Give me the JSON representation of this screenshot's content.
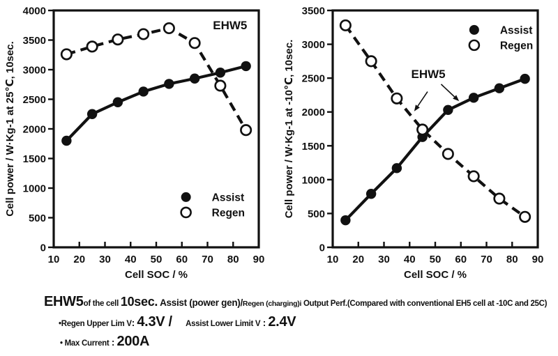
{
  "ink_color": "#111111",
  "background": "#ffffff",
  "chart_data": [
    {
      "id": "left",
      "type": "line",
      "annotation": {
        "text": "EHW5",
        "x": 78.8,
        "y": 3680,
        "arrows": []
      },
      "xlabel": "Cell SOC / %",
      "ylabel": "Cell power / W·Kg-1 at 25℃, 10sec.",
      "xlim": [
        10,
        90
      ],
      "ylim": [
        0,
        4000
      ],
      "xticks": [
        10,
        20,
        30,
        40,
        50,
        60,
        70,
        80,
        90
      ],
      "yticks": [
        0,
        500,
        1000,
        1500,
        2000,
        2500,
        3000,
        3500,
        4000
      ],
      "x": [
        15,
        25,
        35,
        45,
        55,
        65,
        75,
        85
      ],
      "series": [
        {
          "name": "Assist",
          "marker": "filled-circle",
          "line": "solid",
          "values": [
            1800,
            2250,
            2450,
            2630,
            2760,
            2850,
            2950,
            3060
          ]
        },
        {
          "name": "Regen",
          "marker": "open-circle",
          "line": "dashed",
          "values": [
            3260,
            3390,
            3510,
            3600,
            3700,
            3450,
            2730,
            1980
          ]
        }
      ],
      "legend_position": "inside-bottom-right",
      "grid": false
    },
    {
      "id": "right",
      "type": "line",
      "annotation": {
        "text": "EHW5",
        "x": 47.3,
        "y": 2500,
        "arrows": [
          {
            "x1": 47.0,
            "y1": 2300,
            "x2": 41.8,
            "y2": 2010
          },
          {
            "x1": 52.3,
            "y1": 2410,
            "x2": 59.3,
            "y2": 2160
          }
        ]
      },
      "xlabel": "Cell SOC / %",
      "ylabel": "Cell power / W·Kg-1 at -10℃, 10sec.",
      "xlim": [
        10,
        90
      ],
      "ylim": [
        0,
        3500
      ],
      "xticks": [
        10,
        20,
        30,
        40,
        50,
        60,
        70,
        80,
        90
      ],
      "yticks": [
        0,
        500,
        1000,
        1500,
        2000,
        2500,
        3000,
        3500
      ],
      "x": [
        15,
        25,
        35,
        45,
        55,
        65,
        75,
        85
      ],
      "series": [
        {
          "name": "Assist",
          "marker": "filled-circle",
          "line": "solid",
          "values": [
            400,
            790,
            1170,
            1630,
            2030,
            2210,
            2350,
            2490
          ]
        },
        {
          "name": "Regen",
          "marker": "open-circle",
          "line": "dashed",
          "values": [
            3280,
            2750,
            2200,
            1740,
            1380,
            1050,
            720,
            450
          ]
        }
      ],
      "legend_position": "inside-top-right",
      "grid": false
    }
  ],
  "caption": {
    "lines": [
      [
        {
          "text": "EHW5",
          "size": "xl"
        },
        {
          "text": "of the cell ",
          "size": "sm"
        },
        {
          "text": "10sec.",
          "size": "lg"
        },
        {
          "text": " Assist (power gen)",
          "size": "md"
        },
        {
          "text": "/",
          "size": "md"
        },
        {
          "text": "Regen (charging)i",
          "size": "xs"
        },
        {
          "text": " Output Perf.(Compared with conventional EH5 cell at -10C and 25C)",
          "size": "sm"
        }
      ],
      [
        {
          "text": "•Regen Upper Lim V",
          "size": "sm"
        },
        {
          "text": ": ",
          "size": "md"
        },
        {
          "text": "4.3V / ",
          "size": "xl"
        },
        {
          "text": "     Assist Lower Limit V",
          "size": "sm"
        },
        {
          "text": " : ",
          "size": "md"
        },
        {
          "text": "2.4V",
          "size": "xl"
        }
      ],
      [
        {
          "text": "• Max Current",
          "size": "sm"
        },
        {
          "text": " : ",
          "size": "md"
        },
        {
          "text": "200A",
          "size": "xl"
        }
      ]
    ]
  }
}
